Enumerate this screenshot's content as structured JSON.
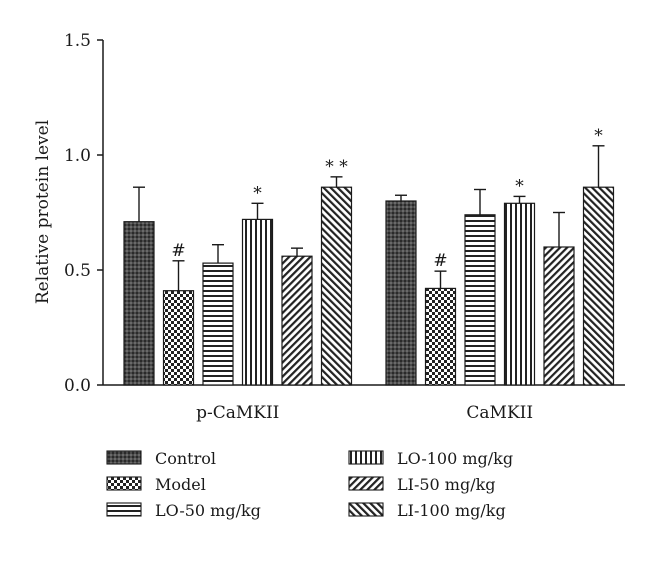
{
  "chart_data": {
    "type": "bar",
    "ylabel": "Relative protein level",
    "xlabel": "",
    "ylim": [
      0,
      1.5
    ],
    "yticks": [
      "0.0",
      "0.5",
      "1.0",
      "1.5"
    ],
    "grid": false,
    "legend_position": "bottom",
    "categories": [
      "p-CaMKII",
      "CaMKII"
    ],
    "series": [
      {
        "name": "Control",
        "pattern": "grid-dark",
        "values": [
          0.71,
          0.8
        ],
        "errors": [
          0.15,
          0.025
        ],
        "annotations": [
          "",
          ""
        ]
      },
      {
        "name": "Model",
        "pattern": "checker",
        "values": [
          0.41,
          0.42
        ],
        "errors": [
          0.13,
          0.075
        ],
        "annotations": [
          "#",
          "#"
        ]
      },
      {
        "name": "LO-50 mg/kg",
        "pattern": "hlines",
        "values": [
          0.53,
          0.74
        ],
        "errors": [
          0.08,
          0.11
        ],
        "annotations": [
          "",
          ""
        ]
      },
      {
        "name": "LO-100 mg/kg",
        "pattern": "vlines",
        "values": [
          0.72,
          0.79
        ],
        "errors": [
          0.07,
          0.03
        ],
        "annotations": [
          "*",
          "*"
        ]
      },
      {
        "name": "LI-50 mg/kg",
        "pattern": "diag-right",
        "values": [
          0.56,
          0.6
        ],
        "errors": [
          0.035,
          0.15
        ],
        "annotations": [
          "",
          ""
        ]
      },
      {
        "name": "LI-100 mg/kg",
        "pattern": "diag-left",
        "values": [
          0.86,
          0.86
        ],
        "errors": [
          0.045,
          0.18
        ],
        "annotations": [
          "**",
          "*"
        ]
      }
    ]
  }
}
